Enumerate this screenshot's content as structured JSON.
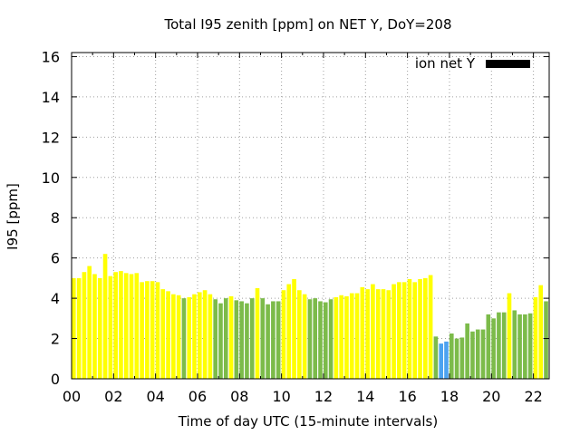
{
  "chart_data": {
    "type": "bar",
    "title": "Total I95 zenith [ppm] on NET Y, DoY=208",
    "xlabel": "Time of day UTC (15-minute intervals)",
    "ylabel": "I95 [ppm]",
    "xlim": [
      0,
      22.75
    ],
    "ylim": [
      0,
      16.2
    ],
    "x_ticks": [
      0,
      2,
      4,
      6,
      8,
      10,
      12,
      14,
      16,
      18,
      20,
      22
    ],
    "x_tick_labels": [
      "00",
      "02",
      "04",
      "06",
      "08",
      "10",
      "12",
      "14",
      "16",
      "18",
      "20",
      "22"
    ],
    "y_ticks": [
      0,
      2,
      4,
      6,
      8,
      10,
      12,
      14,
      16
    ],
    "y_tick_labels": [
      "0",
      "2",
      "4",
      "6",
      "8",
      "10",
      "12",
      "14",
      "16"
    ],
    "grid": true,
    "legend_position": "top-right",
    "legend": [
      {
        "label": "ion net Y",
        "color": "#000000"
      }
    ],
    "bar_interval_hours": 0.25,
    "level_colors": {
      "yellow": "#ffff00",
      "green": "#7cbb4a",
      "blue": "#4ca2f0"
    },
    "values": [
      5.0,
      5.0,
      5.3,
      5.6,
      5.2,
      5.0,
      6.2,
      5.1,
      5.3,
      5.35,
      5.25,
      5.2,
      5.25,
      4.8,
      4.85,
      4.85,
      4.8,
      4.45,
      4.35,
      4.2,
      4.15,
      4.0,
      4.05,
      4.2,
      4.3,
      4.4,
      4.2,
      3.95,
      3.75,
      4.0,
      4.1,
      3.9,
      3.85,
      3.75,
      4.0,
      4.5,
      4.0,
      3.7,
      3.85,
      3.85,
      4.4,
      4.7,
      4.95,
      4.4,
      4.2,
      3.95,
      4.0,
      3.85,
      3.8,
      3.95,
      4.05,
      4.15,
      4.1,
      4.25,
      4.25,
      4.55,
      4.45,
      4.7,
      4.45,
      4.45,
      4.4,
      4.7,
      4.8,
      4.8,
      4.95,
      4.8,
      4.95,
      5.0,
      5.15,
      2.1,
      1.75,
      1.85,
      2.25,
      2.0,
      2.05,
      2.75,
      2.35,
      2.45,
      2.45,
      3.2,
      3.0,
      3.3,
      3.3,
      4.25,
      3.4,
      3.2,
      3.2,
      3.25,
      4.05,
      4.65,
      3.85
    ],
    "levels": [
      "yellow",
      "yellow",
      "yellow",
      "yellow",
      "yellow",
      "yellow",
      "yellow",
      "yellow",
      "yellow",
      "yellow",
      "yellow",
      "yellow",
      "yellow",
      "yellow",
      "yellow",
      "yellow",
      "yellow",
      "yellow",
      "yellow",
      "yellow",
      "yellow",
      "green",
      "yellow",
      "yellow",
      "yellow",
      "yellow",
      "yellow",
      "green",
      "green",
      "green",
      "yellow",
      "green",
      "green",
      "green",
      "green",
      "yellow",
      "green",
      "green",
      "green",
      "green",
      "yellow",
      "yellow",
      "yellow",
      "yellow",
      "yellow",
      "green",
      "green",
      "green",
      "green",
      "green",
      "yellow",
      "yellow",
      "yellow",
      "yellow",
      "yellow",
      "yellow",
      "yellow",
      "yellow",
      "yellow",
      "yellow",
      "yellow",
      "yellow",
      "yellow",
      "yellow",
      "yellow",
      "yellow",
      "yellow",
      "yellow",
      "yellow",
      "green",
      "blue",
      "blue",
      "green",
      "green",
      "green",
      "green",
      "green",
      "green",
      "green",
      "green",
      "green",
      "green",
      "green",
      "yellow",
      "green",
      "green",
      "green",
      "green",
      "yellow",
      "yellow",
      "green"
    ]
  }
}
